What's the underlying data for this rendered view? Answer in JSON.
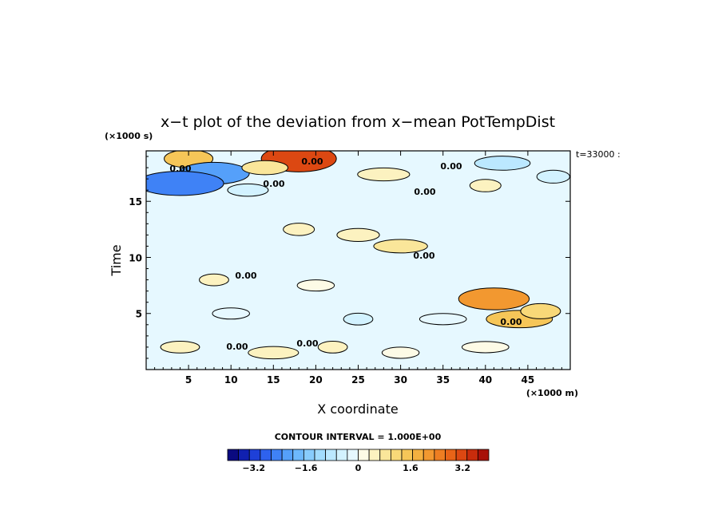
{
  "chart_data": {
    "type": "heatmap",
    "title": "x−t plot of the deviation from x−mean PotTempDist",
    "xlabel": "X coordinate",
    "ylabel": "Time",
    "x_units": "(×1000 m)",
    "y_units": "(×1000 s)",
    "side_label": "t=33000 :",
    "xlim": [
      0,
      50
    ],
    "ylim": [
      0,
      19.5
    ],
    "x_ticks": [
      "5",
      "10",
      "15",
      "20",
      "25",
      "30",
      "35",
      "40",
      "45"
    ],
    "y_ticks": [
      "5",
      "10",
      "15"
    ],
    "contour_interval_text": "CONTOUR INTERVAL = 1.000E+00",
    "contour_labels": [
      "0.00",
      "0.00",
      "0.00",
      "0.00",
      "0.00",
      "0.00",
      "0.00",
      "0.00",
      "0.00",
      "0.00"
    ],
    "colorbar": {
      "min": -4.0,
      "max": 4.0,
      "tick_labels": [
        "−3.2",
        "−1.6",
        "0",
        "1.6",
        "3.2"
      ],
      "colors": [
        "#0a0a80",
        "#1020b0",
        "#1e40d8",
        "#2e62ee",
        "#3f82f6",
        "#55a0fa",
        "#6db8fc",
        "#88ccfd",
        "#a2dcfe",
        "#bbe8ff",
        "#d2f2ff",
        "#e6f8ff",
        "#fdfbe6",
        "#fcf2c0",
        "#fae69a",
        "#f8d878",
        "#f6c658",
        "#f4b040",
        "#f29830",
        "#ee7e22",
        "#e86418",
        "#dc4812",
        "#c82c0c",
        "#a81008"
      ]
    },
    "features": [
      {
        "x": 5.0,
        "t": 18.8,
        "value": 1.5
      },
      {
        "x": 8.0,
        "t": 17.5,
        "value": -2.2
      },
      {
        "x": 4.0,
        "t": 16.6,
        "value": -2.6
      },
      {
        "x": 18.0,
        "t": 18.8,
        "value": 3.0
      },
      {
        "x": 14.0,
        "t": 18.0,
        "value": 0.8
      },
      {
        "x": 42.0,
        "t": 18.4,
        "value": -0.8
      },
      {
        "x": 48.0,
        "t": 17.2,
        "value": -0.6
      },
      {
        "x": 12.0,
        "t": 16.0,
        "value": -0.5
      },
      {
        "x": 28.0,
        "t": 17.4,
        "value": 0.6
      },
      {
        "x": 40.0,
        "t": 16.4,
        "value": 0.5
      },
      {
        "x": 25.0,
        "t": 12.0,
        "value": 0.6
      },
      {
        "x": 30.0,
        "t": 11.0,
        "value": 0.7
      },
      {
        "x": 18.0,
        "t": 12.5,
        "value": 0.5
      },
      {
        "x": 41.0,
        "t": 6.3,
        "value": 2.2
      },
      {
        "x": 44.0,
        "t": 4.5,
        "value": 1.4
      },
      {
        "x": 46.5,
        "t": 5.2,
        "value": 1.0
      },
      {
        "x": 4.0,
        "t": 2.0,
        "value": 0.4
      },
      {
        "x": 15.0,
        "t": 1.5,
        "value": 0.5
      },
      {
        "x": 22.0,
        "t": 2.0,
        "value": 0.4
      },
      {
        "x": 30.0,
        "t": 1.5,
        "value": 0.3
      },
      {
        "x": 40.0,
        "t": 2.0,
        "value": 0.3
      },
      {
        "x": 25.0,
        "t": 4.5,
        "value": -0.4
      },
      {
        "x": 10.0,
        "t": 5.0,
        "value": -0.3
      },
      {
        "x": 35.0,
        "t": 4.5,
        "value": -0.3
      },
      {
        "x": 8.0,
        "t": 8.0,
        "value": 0.4
      },
      {
        "x": 20.0,
        "t": 7.5,
        "value": 0.3
      }
    ]
  }
}
